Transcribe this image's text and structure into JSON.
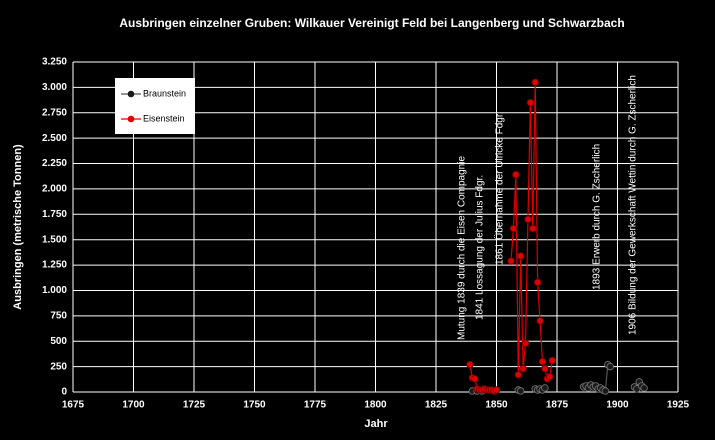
{
  "chart_data": {
    "type": "line",
    "title": "Ausbringen einzelner Gruben: Wilkauer Vereinigt Feld bei Langenberg und Schwarzbach",
    "x_label": "Jahr",
    "y_label": "Ausbringen (metrische Tonnen)",
    "xlim": [
      1675,
      1925
    ],
    "xticks": [
      1675,
      1700,
      1725,
      1750,
      1775,
      1800,
      1825,
      1850,
      1875,
      1900,
      1925
    ],
    "ylim": [
      0,
      3250
    ],
    "yticks": [
      0,
      250,
      500,
      750,
      {
        "value": 1000,
        "label": "1.000"
      },
      {
        "value": 1250,
        "label": "1.250"
      },
      {
        "value": 1500,
        "label": "1.500"
      },
      {
        "value": 1750,
        "label": "1.750"
      },
      {
        "value": 2000,
        "label": "2.000"
      },
      {
        "value": 2250,
        "label": "2.250"
      },
      {
        "value": 2500,
        "label": "2.500"
      },
      {
        "value": 2750,
        "label": "2.750"
      },
      {
        "value": 3000,
        "label": "3.000"
      },
      {
        "value": 3250,
        "label": "3.250"
      }
    ],
    "grid": true,
    "legend": "top-left",
    "series": [
      {
        "name": "Braunstein",
        "color": "#1a1a1a",
        "x": [
          1840,
          1842,
          1844,
          1850,
          1859,
          1860,
          1865,
          1866,
          1867,
          1868,
          1869,
          1870,
          1880,
          1886,
          1887,
          1888,
          1889,
          1890,
          1891,
          1892,
          1893,
          1894,
          1895,
          1896,
          1897,
          1900,
          1907,
          1908,
          1909,
          1910,
          1911
        ],
        "values": [
          10,
          10,
          10,
          null,
          20,
          10,
          null,
          30,
          20,
          30,
          20,
          40,
          null,
          50,
          60,
          40,
          70,
          50,
          60,
          30,
          40,
          20,
          10,
          270,
          250,
          null,
          50,
          30,
          100,
          60,
          40
        ]
      },
      {
        "name": "Eisenstein",
        "color": "#e00000",
        "x": [
          1839,
          1840,
          1841,
          1842,
          1843,
          1844,
          1845,
          1846,
          1847,
          1848,
          1849,
          1850,
          1853,
          1856,
          1857,
          1858,
          1859,
          1860,
          1861,
          1862,
          1863,
          1864,
          1865,
          1866,
          1867,
          1868,
          1869,
          1870,
          1871,
          1872,
          1873
        ],
        "values": [
          270,
          140,
          130,
          30,
          20,
          20,
          30,
          20,
          20,
          20,
          10,
          20,
          null,
          1290,
          1610,
          2140,
          170,
          1340,
          230,
          480,
          1700,
          2850,
          1610,
          3050,
          1080,
          700,
          300,
          230,
          130,
          150,
          310
        ]
      }
    ],
    "annotations": [
      "Mutung 1839 durch die Eisen Compagnie",
      "1841 Lossagung der Julius Fdgr.",
      "1861 Übernahme der Ulricke Fdgr.",
      "1893 Erwerb durch G. Zscherlich",
      "1906 Bildung der Gewerkschaft Wettin durch G. Zscherlich"
    ]
  }
}
